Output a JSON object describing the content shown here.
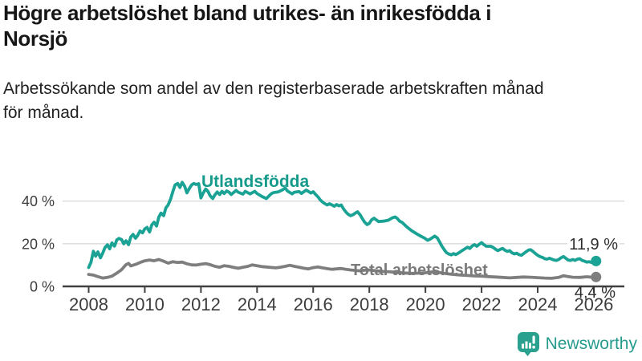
{
  "header": {
    "title": "Högre arbetslöshet bland utrikes- än inrikesfödda i\nNorsjö",
    "subtitle": "Arbetssökande som andel av den registerbaserade arbetskraften månad\nför månad."
  },
  "branding": {
    "logo_text": "Newsworthy",
    "logo_icon": "bar-chart-speech-bubble-icon",
    "brand_color": "#259b8d"
  },
  "colors": {
    "series1": "#1aa294",
    "series2": "#7e7e7e",
    "axis": "#414141",
    "grid": "#dadada",
    "tick_text": "#3d3d3d",
    "end_label_text": "#2e2e2e"
  },
  "chart_data": {
    "type": "line",
    "title": "Högre arbetslöshet bland utrikes- än inrikesfödda i Norsjö",
    "xlabel": "",
    "ylabel": "",
    "x_axis": {
      "ticks": [
        2008,
        2010,
        2012,
        2014,
        2016,
        2018,
        2020,
        2022,
        2024,
        2026
      ],
      "range": [
        2007.1,
        2027.1
      ],
      "grid": false
    },
    "y_axis": {
      "ticks": [
        0,
        20,
        40
      ],
      "tick_labels": [
        "0 %",
        "20 %",
        "40 %"
      ],
      "unit": "%",
      "range": [
        0,
        52
      ],
      "grid": true
    },
    "legend_position": "inline-labels",
    "series": [
      {
        "name": "Utlandsfödda",
        "color": "#1aa294",
        "end_label": "11,9 %",
        "end_value": 11.9,
        "points": [
          [
            2008.0,
            8.9
          ],
          [
            2008.08,
            11.2
          ],
          [
            2008.17,
            16.5
          ],
          [
            2008.25,
            14.2
          ],
          [
            2008.33,
            16.2
          ],
          [
            2008.42,
            13.4
          ],
          [
            2008.5,
            15.6
          ],
          [
            2008.58,
            18.2
          ],
          [
            2008.67,
            19.5
          ],
          [
            2008.75,
            17.6
          ],
          [
            2008.83,
            20.4
          ],
          [
            2008.92,
            18.9
          ],
          [
            2009.0,
            21.8
          ],
          [
            2009.08,
            22.5
          ],
          [
            2009.17,
            22.0
          ],
          [
            2009.25,
            20.0
          ],
          [
            2009.33,
            21.4
          ],
          [
            2009.42,
            19.6
          ],
          [
            2009.5,
            23.2
          ],
          [
            2009.58,
            24.4
          ],
          [
            2009.67,
            22.6
          ],
          [
            2009.75,
            24.0
          ],
          [
            2009.83,
            26.0
          ],
          [
            2009.92,
            25.1
          ],
          [
            2010.0,
            27.0
          ],
          [
            2010.08,
            27.7
          ],
          [
            2010.17,
            25.5
          ],
          [
            2010.25,
            28.9
          ],
          [
            2010.33,
            30.1
          ],
          [
            2010.42,
            28.3
          ],
          [
            2010.5,
            32.5
          ],
          [
            2010.58,
            34.4
          ],
          [
            2010.67,
            33.2
          ],
          [
            2010.75,
            36.8
          ],
          [
            2010.83,
            38.2
          ],
          [
            2010.92,
            41.0
          ],
          [
            2011.0,
            44.5
          ],
          [
            2011.08,
            47.6
          ],
          [
            2011.17,
            48.3
          ],
          [
            2011.25,
            46.4
          ],
          [
            2011.33,
            48.8
          ],
          [
            2011.42,
            47.0
          ],
          [
            2011.5,
            43.9
          ],
          [
            2011.58,
            45.8
          ],
          [
            2011.67,
            47.6
          ],
          [
            2011.75,
            48.3
          ],
          [
            2011.83,
            47.8
          ],
          [
            2011.92,
            48.2
          ],
          [
            2012.0,
            41.5
          ],
          [
            2012.08,
            43.8
          ],
          [
            2012.17,
            45.7
          ],
          [
            2012.25,
            44.6
          ],
          [
            2012.33,
            42.5
          ],
          [
            2012.42,
            41.2
          ],
          [
            2012.5,
            43.0
          ],
          [
            2012.58,
            44.3
          ],
          [
            2012.67,
            43.1
          ],
          [
            2012.75,
            44.6
          ],
          [
            2012.83,
            43.6
          ],
          [
            2012.92,
            44.8
          ],
          [
            2013.0,
            44.2
          ],
          [
            2013.08,
            43.1
          ],
          [
            2013.17,
            44.1
          ],
          [
            2013.25,
            45.0
          ],
          [
            2013.33,
            44.2
          ],
          [
            2013.5,
            43.3
          ],
          [
            2013.58,
            44.6
          ],
          [
            2013.75,
            43.4
          ],
          [
            2013.92,
            44.6
          ],
          [
            2014.0,
            43.6
          ],
          [
            2014.17,
            42.2
          ],
          [
            2014.33,
            41.2
          ],
          [
            2014.5,
            43.4
          ],
          [
            2014.58,
            44.0
          ],
          [
            2014.75,
            44.3
          ],
          [
            2014.92,
            45.4
          ],
          [
            2015.0,
            46.2
          ],
          [
            2015.08,
            44.8
          ],
          [
            2015.25,
            43.4
          ],
          [
            2015.33,
            44.2
          ],
          [
            2015.5,
            44.5
          ],
          [
            2015.58,
            43.6
          ],
          [
            2015.75,
            45.2
          ],
          [
            2015.92,
            43.8
          ],
          [
            2016.0,
            44.4
          ],
          [
            2016.08,
            43.2
          ],
          [
            2016.17,
            42.0
          ],
          [
            2016.25,
            40.6
          ],
          [
            2016.33,
            39.6
          ],
          [
            2016.42,
            38.8
          ],
          [
            2016.5,
            38.2
          ],
          [
            2016.58,
            38.8
          ],
          [
            2016.67,
            38.2
          ],
          [
            2016.75,
            37.6
          ],
          [
            2016.83,
            38.4
          ],
          [
            2016.92,
            37.8
          ],
          [
            2017.0,
            38.2
          ],
          [
            2017.08,
            36.4
          ],
          [
            2017.17,
            34.8
          ],
          [
            2017.25,
            33.8
          ],
          [
            2017.33,
            33.2
          ],
          [
            2017.42,
            33.6
          ],
          [
            2017.5,
            34.4
          ],
          [
            2017.58,
            35.0
          ],
          [
            2017.67,
            33.6
          ],
          [
            2017.75,
            31.8
          ],
          [
            2017.83,
            30.2
          ],
          [
            2017.92,
            29.0
          ],
          [
            2018.0,
            29.6
          ],
          [
            2018.08,
            31.2
          ],
          [
            2018.17,
            32.0
          ],
          [
            2018.25,
            31.2
          ],
          [
            2018.33,
            30.4
          ],
          [
            2018.5,
            30.6
          ],
          [
            2018.67,
            31.0
          ],
          [
            2018.83,
            32.2
          ],
          [
            2018.92,
            32.6
          ],
          [
            2019.0,
            31.8
          ],
          [
            2019.08,
            30.6
          ],
          [
            2019.17,
            30.0
          ],
          [
            2019.33,
            28.0
          ],
          [
            2019.5,
            26.2
          ],
          [
            2019.67,
            24.8
          ],
          [
            2019.83,
            23.6
          ],
          [
            2019.92,
            23.0
          ],
          [
            2020.0,
            22.4
          ],
          [
            2020.08,
            21.6
          ],
          [
            2020.17,
            22.2
          ],
          [
            2020.33,
            23.6
          ],
          [
            2020.42,
            22.8
          ],
          [
            2020.5,
            21.0
          ],
          [
            2020.58,
            19.0
          ],
          [
            2020.67,
            17.2
          ],
          [
            2020.75,
            15.8
          ],
          [
            2020.83,
            15.2
          ],
          [
            2020.92,
            14.8
          ],
          [
            2021.0,
            15.4
          ],
          [
            2021.08,
            14.9
          ],
          [
            2021.17,
            15.6
          ],
          [
            2021.33,
            17.0
          ],
          [
            2021.5,
            18.4
          ],
          [
            2021.58,
            17.8
          ],
          [
            2021.67,
            19.0
          ],
          [
            2021.75,
            19.6
          ],
          [
            2021.83,
            18.8
          ],
          [
            2021.92,
            19.8
          ],
          [
            2022.0,
            20.5
          ],
          [
            2022.08,
            19.6
          ],
          [
            2022.17,
            18.8
          ],
          [
            2022.33,
            18.8
          ],
          [
            2022.42,
            18.2
          ],
          [
            2022.5,
            17.4
          ],
          [
            2022.58,
            16.8
          ],
          [
            2022.67,
            17.4
          ],
          [
            2022.75,
            17.8
          ],
          [
            2022.83,
            17.0
          ],
          [
            2022.92,
            16.4
          ],
          [
            2023.0,
            16.8
          ],
          [
            2023.08,
            15.8
          ],
          [
            2023.17,
            15.2
          ],
          [
            2023.25,
            15.6
          ],
          [
            2023.33,
            14.9
          ],
          [
            2023.42,
            14.6
          ],
          [
            2023.5,
            15.4
          ],
          [
            2023.58,
            16.2
          ],
          [
            2023.67,
            17.0
          ],
          [
            2023.75,
            17.2
          ],
          [
            2023.83,
            16.4
          ],
          [
            2023.92,
            15.4
          ],
          [
            2024.0,
            14.6
          ],
          [
            2024.08,
            14.0
          ],
          [
            2024.17,
            13.6
          ],
          [
            2024.25,
            13.0
          ],
          [
            2024.33,
            12.8
          ],
          [
            2024.42,
            13.2
          ],
          [
            2024.5,
            12.8
          ],
          [
            2024.58,
            12.4
          ],
          [
            2024.67,
            12.2
          ],
          [
            2024.75,
            12.6
          ],
          [
            2024.83,
            13.4
          ],
          [
            2024.92,
            14.0
          ],
          [
            2025.0,
            13.2
          ],
          [
            2025.08,
            12.4
          ],
          [
            2025.17,
            12.2
          ],
          [
            2025.25,
            12.6
          ],
          [
            2025.33,
            12.2
          ],
          [
            2025.42,
            12.8
          ],
          [
            2025.5,
            13.0
          ],
          [
            2025.58,
            12.2
          ],
          [
            2025.67,
            11.8
          ],
          [
            2025.75,
            11.4
          ],
          [
            2025.83,
            11.6
          ],
          [
            2025.92,
            11.2
          ],
          [
            2026.0,
            11.4
          ],
          [
            2026.08,
            11.9
          ]
        ]
      },
      {
        "name": "Total arbetslöshet",
        "color": "#7e7e7e",
        "end_label": "4,4 %",
        "end_value": 4.4,
        "points": [
          [
            2008.0,
            5.6
          ],
          [
            2008.17,
            5.3
          ],
          [
            2008.33,
            4.6
          ],
          [
            2008.5,
            3.9
          ],
          [
            2008.67,
            4.2
          ],
          [
            2008.83,
            4.8
          ],
          [
            2009.0,
            6.2
          ],
          [
            2009.17,
            7.8
          ],
          [
            2009.33,
            10.2
          ],
          [
            2009.42,
            10.8
          ],
          [
            2009.5,
            9.6
          ],
          [
            2009.67,
            10.3
          ],
          [
            2009.83,
            11.2
          ],
          [
            2010.0,
            12.0
          ],
          [
            2010.17,
            12.4
          ],
          [
            2010.33,
            12.0
          ],
          [
            2010.5,
            12.6
          ],
          [
            2010.67,
            11.8
          ],
          [
            2010.83,
            10.9
          ],
          [
            2011.0,
            11.6
          ],
          [
            2011.17,
            11.2
          ],
          [
            2011.33,
            11.4
          ],
          [
            2011.5,
            10.6
          ],
          [
            2011.67,
            10.1
          ],
          [
            2011.83,
            10.0
          ],
          [
            2012.0,
            10.4
          ],
          [
            2012.17,
            10.7
          ],
          [
            2012.33,
            10.2
          ],
          [
            2012.5,
            9.4
          ],
          [
            2012.67,
            9.0
          ],
          [
            2012.83,
            9.7
          ],
          [
            2013.0,
            9.4
          ],
          [
            2013.17,
            8.9
          ],
          [
            2013.33,
            8.5
          ],
          [
            2013.5,
            9.0
          ],
          [
            2013.67,
            9.4
          ],
          [
            2013.83,
            10.1
          ],
          [
            2014.0,
            9.7
          ],
          [
            2014.17,
            9.3
          ],
          [
            2014.33,
            9.1
          ],
          [
            2014.5,
            8.9
          ],
          [
            2014.67,
            8.7
          ],
          [
            2014.83,
            9.0
          ],
          [
            2015.0,
            9.4
          ],
          [
            2015.17,
            9.9
          ],
          [
            2015.33,
            9.4
          ],
          [
            2015.5,
            9.0
          ],
          [
            2015.67,
            8.5
          ],
          [
            2015.83,
            8.2
          ],
          [
            2016.0,
            8.8
          ],
          [
            2016.17,
            9.1
          ],
          [
            2016.33,
            8.7
          ],
          [
            2016.5,
            8.3
          ],
          [
            2016.67,
            8.0
          ],
          [
            2016.83,
            8.2
          ],
          [
            2017.0,
            8.4
          ],
          [
            2017.17,
            8.0
          ],
          [
            2017.33,
            7.7
          ],
          [
            2017.5,
            7.5
          ],
          [
            2017.67,
            7.3
          ],
          [
            2017.83,
            7.6
          ],
          [
            2018.0,
            7.7
          ],
          [
            2018.25,
            7.3
          ],
          [
            2018.5,
            7.0
          ],
          [
            2018.75,
            6.8
          ],
          [
            2019.0,
            6.6
          ],
          [
            2019.25,
            6.3
          ],
          [
            2019.5,
            6.1
          ],
          [
            2019.75,
            6.2
          ],
          [
            2020.0,
            6.4
          ],
          [
            2020.25,
            6.8
          ],
          [
            2020.5,
            6.5
          ],
          [
            2020.75,
            6.0
          ],
          [
            2021.0,
            5.6
          ],
          [
            2021.25,
            5.3
          ],
          [
            2021.5,
            5.1
          ],
          [
            2021.75,
            4.9
          ],
          [
            2022.0,
            4.8
          ],
          [
            2022.25,
            4.6
          ],
          [
            2022.5,
            4.4
          ],
          [
            2022.75,
            4.2
          ],
          [
            2023.0,
            4.0
          ],
          [
            2023.25,
            4.2
          ],
          [
            2023.5,
            4.4
          ],
          [
            2023.75,
            4.3
          ],
          [
            2024.0,
            4.1
          ],
          [
            2024.25,
            3.9
          ],
          [
            2024.5,
            3.8
          ],
          [
            2024.75,
            4.2
          ],
          [
            2024.92,
            5.0
          ],
          [
            2025.08,
            4.6
          ],
          [
            2025.25,
            4.3
          ],
          [
            2025.5,
            4.2
          ],
          [
            2025.75,
            4.5
          ],
          [
            2026.0,
            4.2
          ],
          [
            2026.08,
            4.4
          ]
        ]
      }
    ]
  }
}
